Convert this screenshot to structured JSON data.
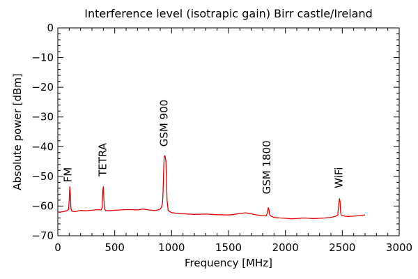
{
  "chart_data": {
    "type": "line",
    "title": "Interference level (isotrapic gain) Birr castle/Ireland",
    "xlabel": "Frequency [MHz]",
    "ylabel": "Absolute power [dBm]",
    "xlim": [
      0,
      3000
    ],
    "ylim": [
      -70,
      0
    ],
    "xticks": [
      0,
      500,
      1000,
      1500,
      2000,
      2500,
      3000
    ],
    "yticks": [
      0,
      -10,
      -20,
      -30,
      -40,
      -50,
      -60,
      -70
    ],
    "xtick_labels": [
      "0",
      "500",
      "1000",
      "1500",
      "2000",
      "2500",
      "3000"
    ],
    "ytick_labels": [
      "0",
      "−10",
      "−20",
      "−30",
      "−40",
      "−50",
      "−60",
      "−70"
    ],
    "grid": false,
    "series_color": "#e00000",
    "series": [
      {
        "x": [
          0,
          20,
          40,
          60,
          80,
          95,
          100,
          105,
          110,
          115,
          120,
          125,
          130,
          150,
          200,
          250,
          300,
          350,
          380,
          390,
          395,
          400,
          405,
          410,
          420,
          450,
          500,
          550,
          600,
          650,
          700,
          750,
          800,
          850,
          880,
          900,
          910,
          920,
          925,
          930,
          935,
          940,
          945,
          950,
          955,
          960,
          970,
          980,
          1000,
          1050,
          1100,
          1200,
          1300,
          1400,
          1500,
          1550,
          1600,
          1650,
          1700,
          1750,
          1800,
          1830,
          1840,
          1850,
          1855,
          1860,
          1870,
          1880,
          1900,
          1950,
          2000,
          2050,
          2100,
          2150,
          2200,
          2250,
          2300,
          2350,
          2400,
          2440,
          2460,
          2470,
          2475,
          2480,
          2485,
          2490,
          2500,
          2520,
          2550,
          2600,
          2650,
          2700
        ],
        "y": [
          -62,
          -62.1,
          -61.9,
          -61.8,
          -61.5,
          -61.2,
          -58,
          -53.5,
          -56,
          -60.5,
          -61.5,
          -61.7,
          -61.8,
          -61.9,
          -61.5,
          -61.6,
          -61.4,
          -61.2,
          -61.3,
          -60.5,
          -55,
          -53.5,
          -58,
          -61,
          -61.5,
          -61.6,
          -61.4,
          -61.3,
          -61.2,
          -61.2,
          -61.3,
          -61.0,
          -61.3,
          -61.5,
          -61.3,
          -61,
          -60.5,
          -59,
          -55,
          -48,
          -43.5,
          -43.0,
          -43.5,
          -45,
          -52,
          -58,
          -61.5,
          -61.8,
          -62.2,
          -62.5,
          -62.6,
          -62.8,
          -62.7,
          -62.9,
          -63,
          -62.8,
          -62.5,
          -62.3,
          -62.6,
          -63,
          -63.2,
          -63.3,
          -62.5,
          -60.5,
          -61.2,
          -62.8,
          -63.3,
          -63.5,
          -63.8,
          -64.0,
          -64.1,
          -64.3,
          -64.2,
          -64.0,
          -64.1,
          -64.2,
          -64.1,
          -64.0,
          -63.8,
          -63.5,
          -63,
          -59,
          -57.5,
          -58.5,
          -62,
          -63,
          -63.2,
          -63.4,
          -63.5,
          -63.4,
          -63.2,
          -63.0
        ]
      }
    ],
    "annotations": [
      {
        "text": "FM",
        "x": 88,
        "y": -52
      },
      {
        "text": "TETRA",
        "x": 395,
        "y": -50
      },
      {
        "text": "GSM 900",
        "x": 935,
        "y": -40
      },
      {
        "text": "GSM 1800",
        "x": 1838,
        "y": -56
      },
      {
        "text": "WiFi",
        "x": 2470,
        "y": -54
      }
    ]
  }
}
